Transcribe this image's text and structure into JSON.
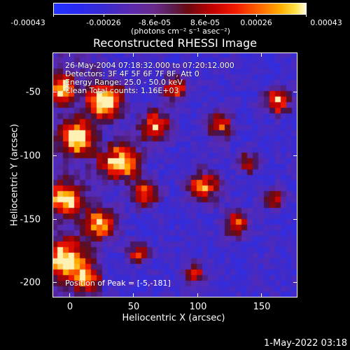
{
  "colorbar": {
    "labels": [
      "-0.00043",
      "-0.00026",
      "-8.6e-05",
      "8.6e-05",
      "0.00026",
      "0.00043"
    ],
    "units": "(photons cm⁻² s⁻¹ asec⁻²)"
  },
  "plot": {
    "title": "Reconstructed RHESSI Image",
    "info": {
      "line1": "26-May-2004 07:18:32.000 to 07:20:12.000",
      "line2": "Detectors: 3F 4F 5F 6F 7F 8F, Att 0",
      "line3": "Energy Range: 25.0 - 50.0 keV",
      "line4": "Clean     Total counts: 1.16E+03"
    },
    "peak": "Position of Peak = [-5,-181]"
  },
  "timestamp": "1-May-2022 03:18",
  "chart_data": {
    "type": "heatmap",
    "title": "Reconstructed RHESSI Image",
    "xlabel": "Heliocentric X (arcsec)",
    "ylabel": "Heliocentric Y (arcsec)",
    "xlim": [
      -13,
      180
    ],
    "ylim": [
      -210,
      -27
    ],
    "xticks": [
      0,
      50,
      100,
      150
    ],
    "yticks": [
      -50,
      -100,
      -150,
      -200
    ],
    "colorbar_range": [
      -0.00043,
      0.00043
    ],
    "grid": false,
    "colors": {
      "low": "#2233ff",
      "mid_low": "#5a2ab0",
      "zero": "#6a0a10",
      "mid_high": "#f21a00",
      "high": "#fffbe0"
    }
  }
}
